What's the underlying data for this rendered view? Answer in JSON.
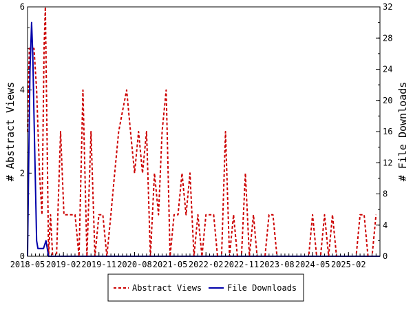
{
  "chart_data": {
    "type": "line",
    "ylabel_left": "# Abstract Views",
    "ylabel_right": "# File Downloads",
    "x_start": "2018-05",
    "x_end": "2025-10",
    "x_ticks": [
      "2018-05",
      "2019-02",
      "2019-11",
      "2020-08",
      "2021-05",
      "2022-02",
      "2022-11",
      "2023-08",
      "2024-05",
      "2025-02"
    ],
    "y_left_lim": [
      0,
      6
    ],
    "y_left_ticks": [
      0,
      2,
      4,
      6
    ],
    "y_right_lim": [
      0,
      32
    ],
    "y_right_ticks": [
      0,
      4,
      8,
      12,
      16,
      20,
      24,
      28,
      32
    ],
    "series": [
      {
        "name": "Abstract Views",
        "axis": "left",
        "color": "#cc0000",
        "dashed": true,
        "points": [
          [
            "2018-05-01",
            3
          ],
          [
            "2018-05-15",
            5
          ],
          [
            "2018-06-01",
            5
          ],
          [
            "2018-06-20",
            5
          ],
          [
            "2018-07-10",
            4
          ],
          [
            "2018-08-01",
            2
          ],
          [
            "2018-08-20",
            1
          ],
          [
            "2018-09-05",
            5
          ],
          [
            "2018-09-15",
            6
          ],
          [
            "2018-10-10",
            0
          ],
          [
            "2018-10-25",
            1
          ],
          [
            "2018-11-10",
            0
          ],
          [
            "2018-12-10",
            0
          ],
          [
            "2019-01-10",
            3
          ],
          [
            "2019-02-05",
            1
          ],
          [
            "2019-03-01",
            1
          ],
          [
            "2019-04-01",
            1
          ],
          [
            "2019-05-01",
            1
          ],
          [
            "2019-06-01",
            0
          ],
          [
            "2019-07-01",
            4
          ],
          [
            "2019-08-01",
            0
          ],
          [
            "2019-09-01",
            3
          ],
          [
            "2019-10-01",
            0
          ],
          [
            "2019-11-01",
            1
          ],
          [
            "2019-12-01",
            1
          ],
          [
            "2020-01-01",
            0
          ],
          [
            "2020-02-01",
            1
          ],
          [
            "2020-03-01",
            2
          ],
          [
            "2020-04-01",
            3
          ],
          [
            "2020-05-01",
            3.5
          ],
          [
            "2020-06-01",
            4
          ],
          [
            "2020-07-01",
            3
          ],
          [
            "2020-08-01",
            2
          ],
          [
            "2020-09-01",
            3
          ],
          [
            "2020-10-01",
            2
          ],
          [
            "2020-11-01",
            3
          ],
          [
            "2020-12-01",
            0
          ],
          [
            "2021-01-01",
            2
          ],
          [
            "2021-02-01",
            1
          ],
          [
            "2021-03-01",
            3
          ],
          [
            "2021-04-01",
            4
          ],
          [
            "2021-05-01",
            0
          ],
          [
            "2021-06-01",
            1
          ],
          [
            "2021-07-01",
            1
          ],
          [
            "2021-08-01",
            2
          ],
          [
            "2021-09-01",
            1
          ],
          [
            "2021-10-01",
            2
          ],
          [
            "2021-11-01",
            0
          ],
          [
            "2021-12-01",
            1
          ],
          [
            "2022-01-01",
            0
          ],
          [
            "2022-02-01",
            1
          ],
          [
            "2022-03-01",
            1
          ],
          [
            "2022-04-01",
            1
          ],
          [
            "2022-05-01",
            0
          ],
          [
            "2022-06-01",
            0
          ],
          [
            "2022-07-01",
            3
          ],
          [
            "2022-08-01",
            0
          ],
          [
            "2022-09-01",
            1
          ],
          [
            "2022-10-01",
            0
          ],
          [
            "2022-11-01",
            0
          ],
          [
            "2022-12-01",
            2
          ],
          [
            "2023-01-01",
            0
          ],
          [
            "2023-02-01",
            1
          ],
          [
            "2023-03-01",
            0
          ],
          [
            "2023-04-01",
            0
          ],
          [
            "2023-05-01",
            0
          ],
          [
            "2023-06-01",
            1
          ],
          [
            "2023-07-01",
            1
          ],
          [
            "2023-08-01",
            0
          ],
          [
            "2024-04-01",
            0
          ],
          [
            "2024-05-01",
            1
          ],
          [
            "2024-06-01",
            0
          ],
          [
            "2024-07-01",
            0
          ],
          [
            "2024-08-01",
            1
          ],
          [
            "2024-09-01",
            0
          ],
          [
            "2024-10-01",
            1
          ],
          [
            "2024-11-01",
            0
          ],
          [
            "2025-04-01",
            0
          ],
          [
            "2025-05-01",
            1
          ],
          [
            "2025-06-01",
            1
          ],
          [
            "2025-07-01",
            0
          ],
          [
            "2025-08-01",
            0
          ],
          [
            "2025-09-01",
            1
          ]
        ]
      },
      {
        "name": "File Downloads",
        "axis": "right",
        "color": "#0000aa",
        "dashed": false,
        "points": [
          [
            "2018-05-01",
            0
          ],
          [
            "2018-05-10",
            12
          ],
          [
            "2018-05-20",
            24
          ],
          [
            "2018-06-01",
            30
          ],
          [
            "2018-06-10",
            26
          ],
          [
            "2018-06-20",
            18
          ],
          [
            "2018-07-10",
            2
          ],
          [
            "2018-07-20",
            1
          ],
          [
            "2018-09-01",
            1
          ],
          [
            "2018-09-20",
            2
          ],
          [
            "2018-10-10",
            0
          ],
          [
            "2025-10-01",
            0
          ]
        ]
      }
    ],
    "legend": "bottom"
  }
}
